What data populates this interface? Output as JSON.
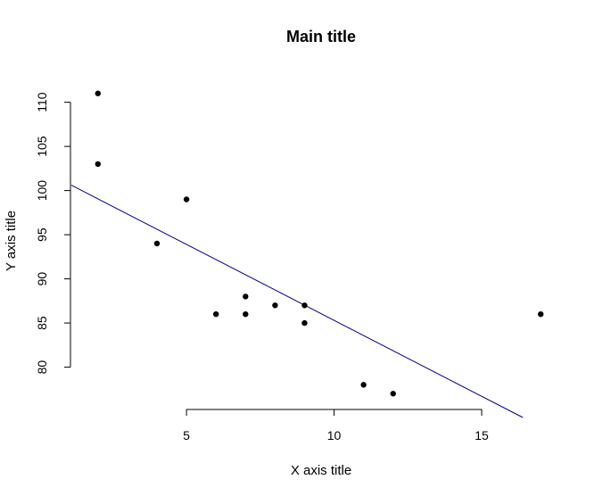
{
  "chart_data": {
    "type": "scatter",
    "title": "Main title",
    "xlabel": "X axis title",
    "ylabel": "Y axis title",
    "xlim": [
      1.1,
      17.9
    ],
    "ylim": [
      74.3,
      113.7
    ],
    "x_ticks": [
      5,
      10,
      15
    ],
    "y_ticks": [
      80,
      85,
      90,
      95,
      100,
      105,
      110
    ],
    "points": [
      {
        "x": 2,
        "y": 111
      },
      {
        "x": 2,
        "y": 103
      },
      {
        "x": 4,
        "y": 94
      },
      {
        "x": 5,
        "y": 99
      },
      {
        "x": 6,
        "y": 86
      },
      {
        "x": 7,
        "y": 88
      },
      {
        "x": 7,
        "y": 86
      },
      {
        "x": 8,
        "y": 87
      },
      {
        "x": 9,
        "y": 87
      },
      {
        "x": 9,
        "y": 85
      },
      {
        "x": 11,
        "y": 78
      },
      {
        "x": 12,
        "y": 77
      },
      {
        "x": 17,
        "y": 86
      }
    ],
    "regression_line": {
      "intercept": 102.5,
      "slope": -1.72,
      "color": "#00008b"
    },
    "point_color": "#000000",
    "grid": false
  }
}
